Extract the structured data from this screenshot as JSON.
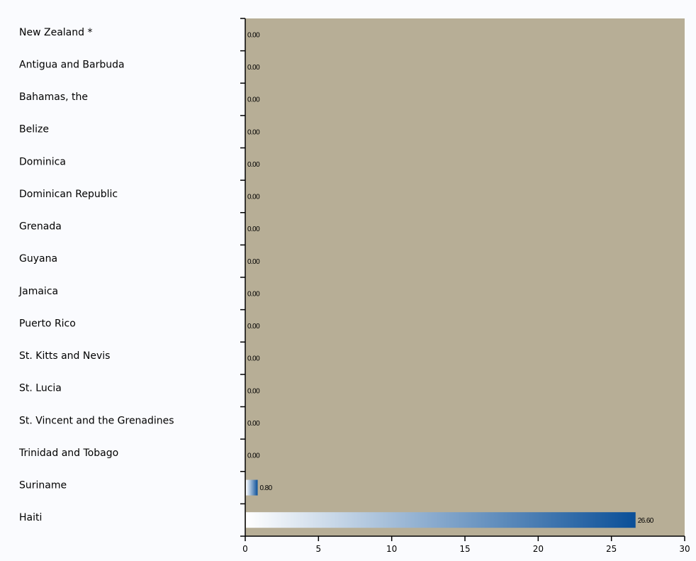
{
  "chart_data": {
    "type": "bar",
    "orientation": "horizontal",
    "title": "",
    "xlabel": "",
    "ylabel": "",
    "categories": [
      "New Zealand *",
      "Antigua and Barbuda",
      "Bahamas, the",
      "Belize",
      "Dominica",
      "Dominican Republic",
      "Grenada",
      "Guyana",
      "Jamaica",
      "Puerto Rico",
      "St. Kitts and Nevis",
      "St. Lucia",
      "St. Vincent and the Grenadines",
      "Trinidad and Tobago",
      "Suriname",
      "Haiti"
    ],
    "values": [
      0,
      0,
      0,
      0,
      0,
      0,
      0,
      0,
      0,
      0,
      0,
      0,
      0,
      0,
      0.8,
      26.6
    ],
    "value_labels": [
      "0.00",
      "0.00",
      "0.00",
      "0.00",
      "0.00",
      "0.00",
      "0.00",
      "0.00",
      "0.00",
      "0.00",
      "0.00",
      "0.00",
      "0.00",
      "0.00",
      "0.80",
      "26.60"
    ],
    "xlim": [
      0,
      30
    ],
    "xticks": [
      0,
      5,
      10,
      15,
      20,
      25,
      30
    ],
    "xtick_labels": [
      "0",
      "5",
      "10",
      "15",
      "20",
      "25",
      "30"
    ],
    "grid": false,
    "legend": "none",
    "plot_background": "#b7ae96",
    "bar_gradient": [
      "#ffffff",
      "#0a4f98"
    ]
  }
}
